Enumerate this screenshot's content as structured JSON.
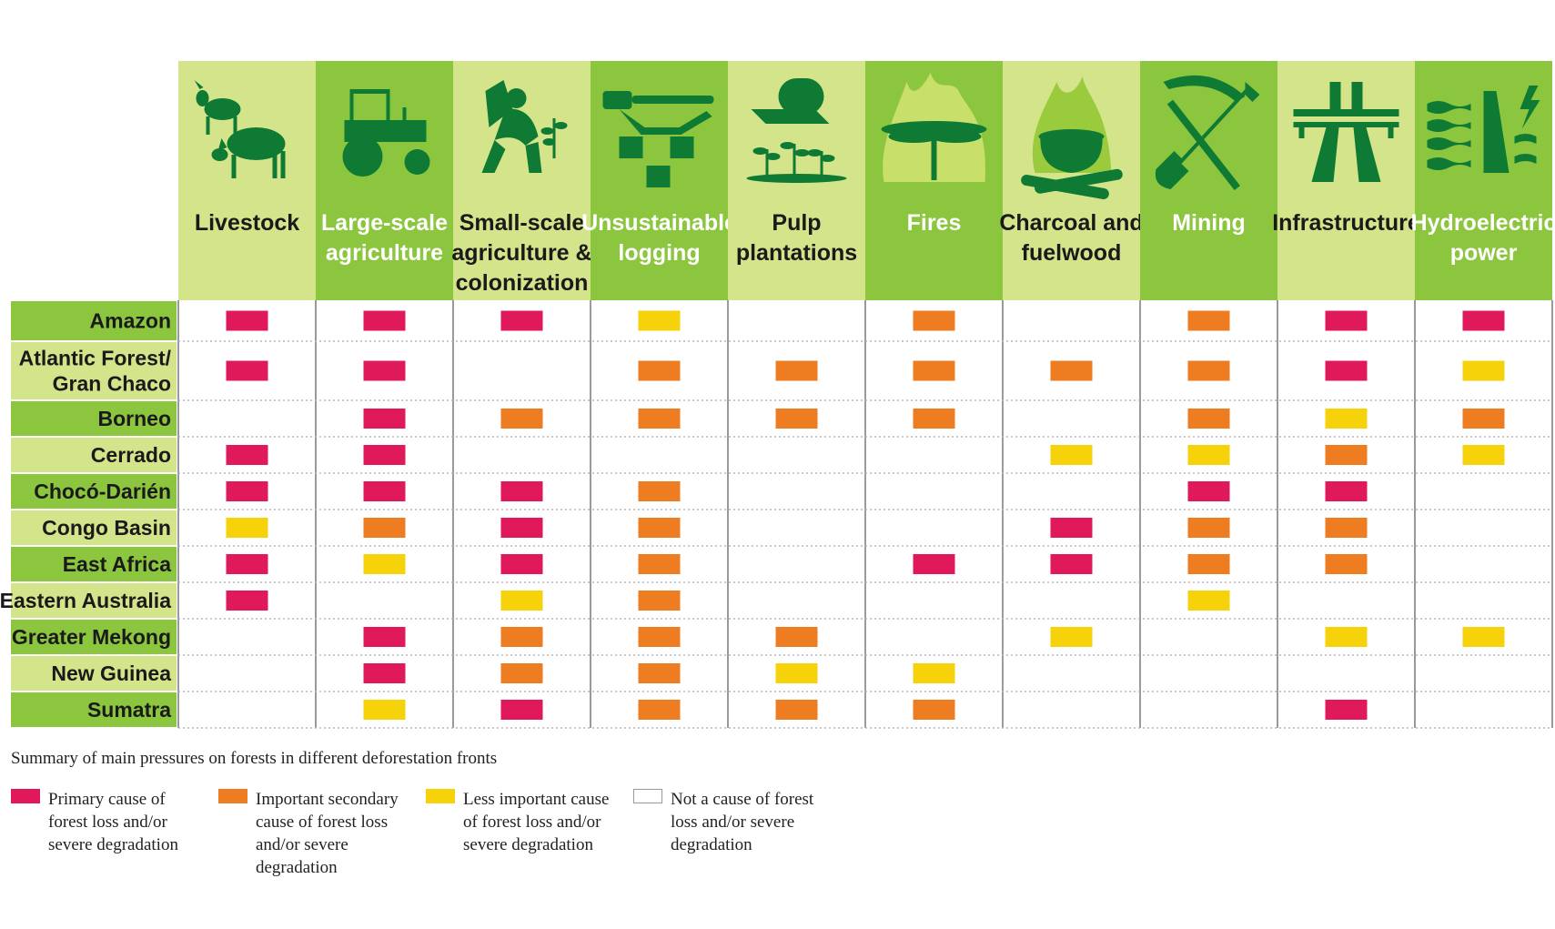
{
  "chart_data": {
    "type": "table",
    "columns": [
      {
        "label": [
          "Livestock"
        ],
        "icon": "livestock-icon"
      },
      {
        "label": [
          "Large-scale",
          "agriculture"
        ],
        "icon": "tractor-icon"
      },
      {
        "label": [
          "Small-scale",
          "agriculture &",
          "colonization"
        ],
        "icon": "farmer-planting-icon"
      },
      {
        "label": [
          "Unsustainable",
          "logging"
        ],
        "icon": "chainsaw-stumps-icon"
      },
      {
        "label": [
          "Pulp",
          "plantations"
        ],
        "icon": "paper-roll-seedlings-icon"
      },
      {
        "label": [
          "Fires"
        ],
        "icon": "burning-tree-icon"
      },
      {
        "label": [
          "Charcoal and",
          "fuelwood"
        ],
        "icon": "cooking-pot-fire-icon"
      },
      {
        "label": [
          "Mining"
        ],
        "icon": "pickaxe-shovel-icon"
      },
      {
        "label": [
          "Infrastructure"
        ],
        "icon": "highway-icon"
      },
      {
        "label": [
          "Hydroelectric",
          "power"
        ],
        "icon": "dam-lightning-icon"
      }
    ],
    "rows": [
      {
        "label": [
          "Amazon"
        ],
        "values": [
          "primary",
          "primary",
          "primary",
          "less",
          "none",
          "secondary",
          "none",
          "secondary",
          "primary",
          "primary"
        ]
      },
      {
        "label": [
          "Atlantic Forest/",
          "Gran Chaco"
        ],
        "values": [
          "primary",
          "primary",
          "none",
          "secondary",
          "secondary",
          "secondary",
          "secondary",
          "secondary",
          "primary",
          "less"
        ]
      },
      {
        "label": [
          "Borneo"
        ],
        "values": [
          "none",
          "primary",
          "secondary",
          "secondary",
          "secondary",
          "secondary",
          "none",
          "secondary",
          "less",
          "secondary"
        ]
      },
      {
        "label": [
          "Cerrado"
        ],
        "values": [
          "primary",
          "primary",
          "none",
          "none",
          "none",
          "none",
          "less",
          "less",
          "secondary",
          "less"
        ]
      },
      {
        "label": [
          "Chocó-Darién"
        ],
        "values": [
          "primary",
          "primary",
          "primary",
          "secondary",
          "none",
          "none",
          "none",
          "primary",
          "primary",
          "none"
        ]
      },
      {
        "label": [
          "Congo Basin"
        ],
        "values": [
          "less",
          "secondary",
          "primary",
          "secondary",
          "none",
          "none",
          "primary",
          "secondary",
          "secondary",
          "none"
        ]
      },
      {
        "label": [
          "East Africa"
        ],
        "values": [
          "primary",
          "less",
          "primary",
          "secondary",
          "none",
          "primary",
          "primary",
          "secondary",
          "secondary",
          "none"
        ]
      },
      {
        "label": [
          "Eastern Australia"
        ],
        "values": [
          "primary",
          "none",
          "less",
          "secondary",
          "none",
          "none",
          "none",
          "less",
          "none",
          "none"
        ]
      },
      {
        "label": [
          "Greater Mekong"
        ],
        "values": [
          "none",
          "primary",
          "secondary",
          "secondary",
          "secondary",
          "none",
          "less",
          "none",
          "less",
          "less"
        ]
      },
      {
        "label": [
          "New Guinea"
        ],
        "values": [
          "none",
          "primary",
          "secondary",
          "secondary",
          "less",
          "less",
          "none",
          "none",
          "none",
          "none"
        ]
      },
      {
        "label": [
          "Sumatra"
        ],
        "values": [
          "none",
          "less",
          "primary",
          "secondary",
          "secondary",
          "secondary",
          "none",
          "none",
          "primary",
          "none"
        ]
      }
    ],
    "legend": [
      {
        "key": "primary",
        "color": "#e0195a",
        "label": "Primary cause of forest loss and/or severe degradation"
      },
      {
        "key": "secondary",
        "color": "#ee7d22",
        "label": "Important secondary cause of forest loss and/or severe degradation"
      },
      {
        "key": "less",
        "color": "#f5d20a",
        "label": "Less important cause of forest loss and/or severe degradation"
      },
      {
        "key": "none",
        "color": "#ffffff",
        "label": "Not a cause of forest loss and/or severe degradation"
      }
    ],
    "caption": "Summary of main pressures on forests in different deforestation fronts",
    "colors": {
      "header_dark": "#8cc63f",
      "header_light": "#d4e48a",
      "icon": "#0e7a34",
      "label_on_dark": "#ffffff",
      "label_on_light": "#1a1a1a"
    }
  }
}
